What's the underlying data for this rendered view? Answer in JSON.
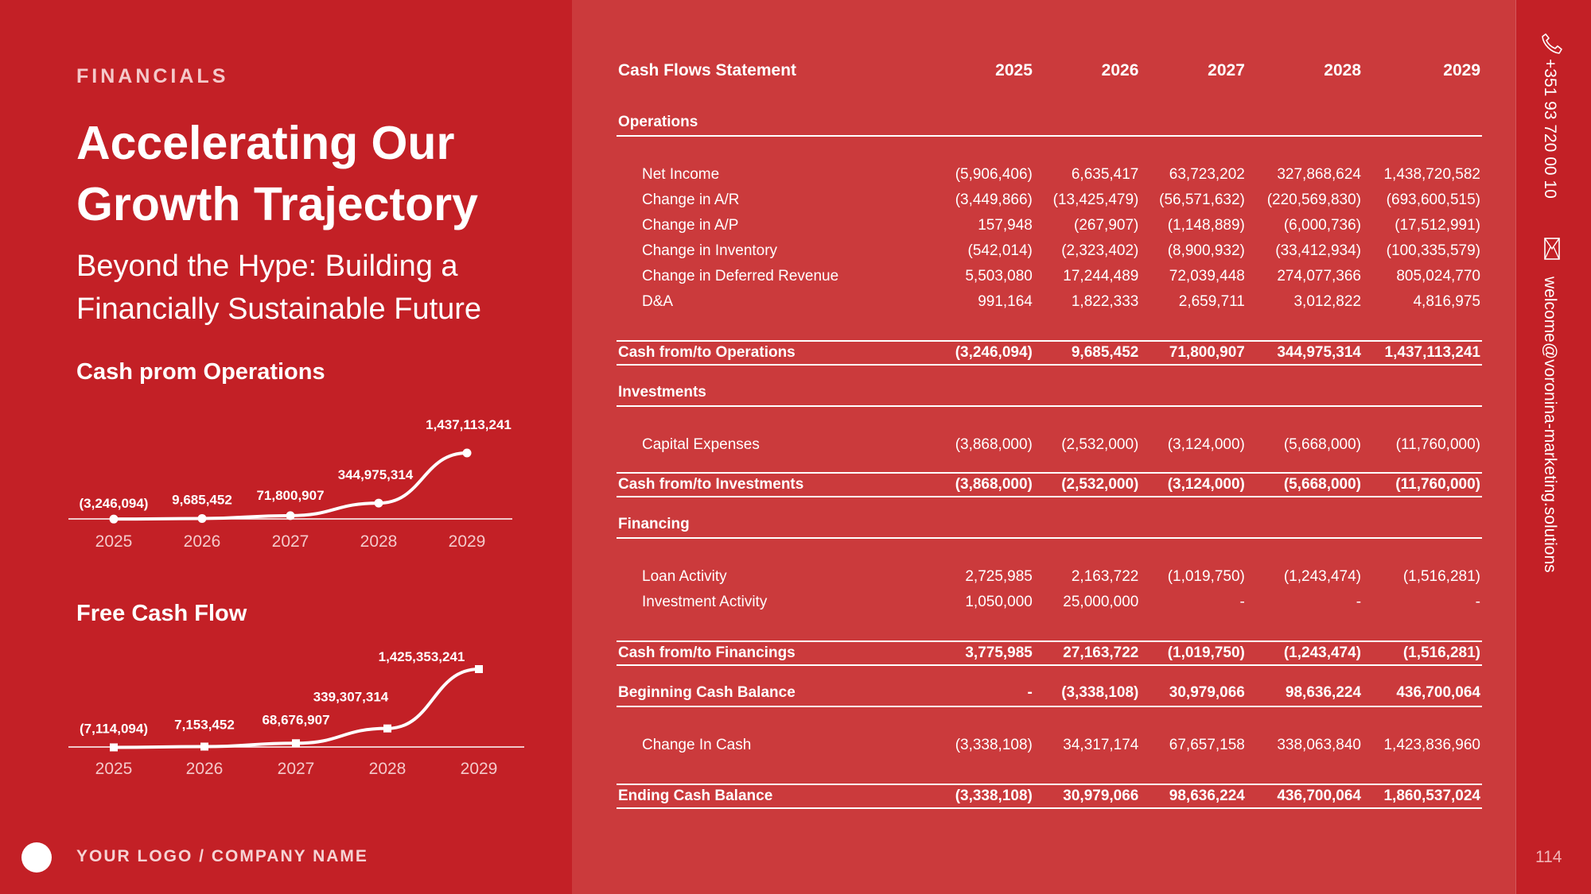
{
  "header": {
    "eyebrow": "FINANCIALS",
    "title": "Accelerating Our Growth Trajectory",
    "subtitle": "Beyond the Hype: Building a Financially Sustainable Future"
  },
  "footer": {
    "logo_text": "YOUR LOGO / COMPANY NAME",
    "page_number": "114"
  },
  "contact": {
    "phone": "+351 93 720 00 10",
    "email": "welcome@voronina-marketing.solutions"
  },
  "icons": {
    "phone": "phone-icon",
    "email": "envelope-icon"
  },
  "colors": {
    "background": "#C32026",
    "panel": "#CB3A3C",
    "text": "#FFFFFF"
  },
  "chart_data": [
    {
      "type": "line",
      "title": "Cash prom Operations",
      "categories": [
        "2025",
        "2026",
        "2027",
        "2028",
        "2029"
      ],
      "values": [
        -3246094,
        9685452,
        71800907,
        344975314,
        1437113241
      ],
      "data_labels": [
        "(3,246,094)",
        "9,685,452",
        "71,800,907",
        "344,975,314",
        "1,437,113,241"
      ],
      "marker": "circle"
    },
    {
      "type": "line",
      "title": "Free Cash Flow",
      "categories": [
        "2025",
        "2026",
        "2027",
        "2028",
        "2029"
      ],
      "values": [
        -7114094,
        7153452,
        68676907,
        339307314,
        1425353241
      ],
      "data_labels": [
        "(7,114,094)",
        "7,153,452",
        "68,676,907",
        "339,307,314",
        "1,425,353,241"
      ],
      "marker": "square"
    }
  ],
  "statement": {
    "title": "Cash Flows Statement",
    "years": [
      "2025",
      "2026",
      "2027",
      "2028",
      "2029"
    ],
    "rows": [
      {
        "kind": "sp"
      },
      {
        "kind": "sec",
        "label": "Operations"
      },
      {
        "kind": "sp"
      },
      {
        "kind": "item",
        "label": "Net Income",
        "values": [
          "(5,906,406)",
          "6,635,417",
          "63,723,202",
          "327,868,624",
          "1,438,720,582"
        ]
      },
      {
        "kind": "item",
        "label": "Change in A/R",
        "values": [
          "(3,449,866)",
          "(13,425,479)",
          "(56,571,632)",
          "(220,569,830)",
          "(693,600,515)"
        ]
      },
      {
        "kind": "item",
        "label": "Change in A/P",
        "values": [
          "157,948",
          "(267,907)",
          "(1,148,889)",
          "(6,000,736)",
          "(17,512,991)"
        ]
      },
      {
        "kind": "item",
        "label": "Change in Inventory",
        "values": [
          "(542,014)",
          "(2,323,402)",
          "(8,900,932)",
          "(33,412,934)",
          "(100,335,579)"
        ]
      },
      {
        "kind": "item",
        "label": "Change in Deferred Revenue",
        "values": [
          "5,503,080",
          "17,244,489",
          "72,039,448",
          "274,077,366",
          "805,024,770"
        ]
      },
      {
        "kind": "item",
        "label": "D&A",
        "values": [
          "991,164",
          "1,822,333",
          "2,659,711",
          "3,012,822",
          "4,816,975"
        ]
      },
      {
        "kind": "sp"
      },
      {
        "kind": "tot",
        "label": "Cash from/to Operations",
        "values": [
          "(3,246,094)",
          "9,685,452",
          "71,800,907",
          "344,975,314",
          "1,437,113,241"
        ]
      },
      {
        "kind": "spS"
      },
      {
        "kind": "sec",
        "label": "Investments"
      },
      {
        "kind": "sp"
      },
      {
        "kind": "item",
        "label": "Capital Expenses",
        "values": [
          "(3,868,000)",
          "(2,532,000)",
          "(3,124,000)",
          "(5,668,000)",
          "(11,760,000)"
        ]
      },
      {
        "kind": "spS"
      },
      {
        "kind": "tot",
        "label": "Cash from/to Investments",
        "values": [
          "(3,868,000)",
          "(2,532,000)",
          "(3,124,000)",
          "(5,668,000)",
          "(11,760,000)"
        ]
      },
      {
        "kind": "spS"
      },
      {
        "kind": "sec",
        "label": "Financing"
      },
      {
        "kind": "sp"
      },
      {
        "kind": "item",
        "label": "Loan Activity",
        "values": [
          "2,725,985",
          "2,163,722",
          "(1,019,750)",
          "(1,243,474)",
          "(1,516,281)"
        ]
      },
      {
        "kind": "item",
        "label": "Investment Activity",
        "values": [
          "1,050,000",
          "25,000,000",
          "-",
          "-",
          "-"
        ]
      },
      {
        "kind": "sp"
      },
      {
        "kind": "tot",
        "label": "Cash from/to Financings",
        "values": [
          "3,775,985",
          "27,163,722",
          "(1,019,750)",
          "(1,243,474)",
          "(1,516,281)"
        ]
      },
      {
        "kind": "spS"
      },
      {
        "kind": "sec",
        "label": "Beginning Cash Balance",
        "values": [
          "-",
          "(3,338,108)",
          "30,979,066",
          "98,636,224",
          "436,700,064"
        ]
      },
      {
        "kind": "sp"
      },
      {
        "kind": "item",
        "label": "Change In Cash",
        "values": [
          "(3,338,108)",
          "34,317,174",
          "67,657,158",
          "338,063,840",
          "1,423,836,960"
        ]
      },
      {
        "kind": "sp"
      },
      {
        "kind": "tot",
        "label": "Ending Cash Balance",
        "values": [
          "(3,338,108)",
          "30,979,066",
          "98,636,224",
          "436,700,064",
          "1,860,537,024"
        ]
      }
    ]
  }
}
